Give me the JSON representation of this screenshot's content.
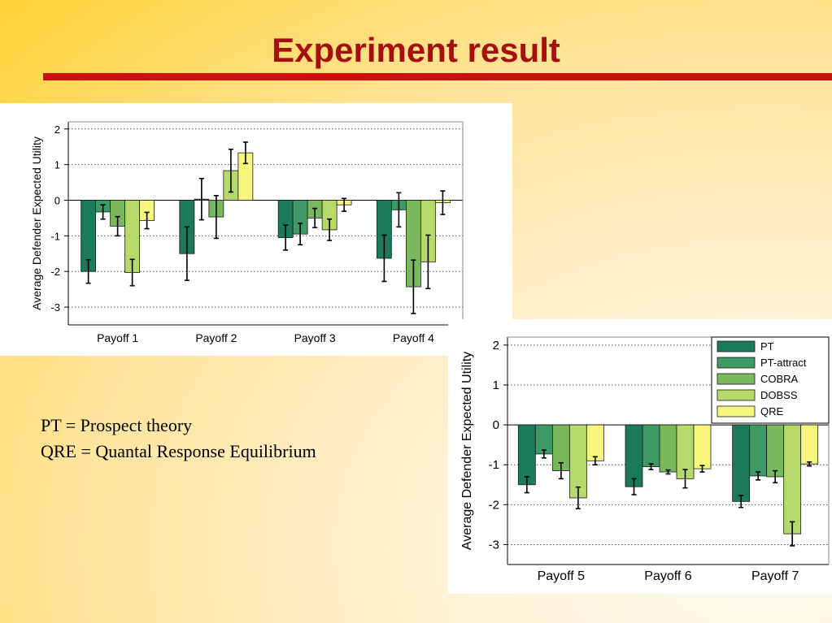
{
  "slide": {
    "title": "Experiment result",
    "notes": [
      "PT = Prospect theory",
      "QRE = Quantal Response Equilibrium"
    ]
  },
  "colors": {
    "title": "#a50f0f",
    "rule": "#cc1010",
    "series": [
      "#1a7a5a",
      "#3e9a64",
      "#79b85c",
      "#b6da69",
      "#f6f77c"
    ]
  },
  "chart_data": [
    {
      "type": "bar",
      "ylabel": "Average Defender Expected Utility",
      "ylim": [
        -3.5,
        2.2
      ],
      "yticks": [
        2,
        1,
        0,
        -1,
        -2,
        -3
      ],
      "grid": "dotted horizontal",
      "legend": null,
      "categories": [
        "Payoff 1",
        "Payoff 2",
        "Payoff 3",
        "Payoff 4"
      ],
      "series": [
        {
          "name": "PT",
          "values": [
            -2.0,
            -1.5,
            -1.05,
            -1.63
          ],
          "err": [
            0.33,
            0.75,
            0.35,
            0.65
          ]
        },
        {
          "name": "PT-attract",
          "values": [
            -0.33,
            0.03,
            -0.95,
            -0.27
          ],
          "err": [
            0.2,
            0.58,
            0.3,
            0.48
          ]
        },
        {
          "name": "COBRA",
          "values": [
            -0.73,
            -0.47,
            -0.5,
            -2.43
          ],
          "err": [
            0.27,
            0.6,
            0.27,
            0.75
          ]
        },
        {
          "name": "DOBSS",
          "values": [
            -2.03,
            0.83,
            -0.83,
            -1.73
          ],
          "err": [
            0.37,
            0.6,
            0.3,
            0.75
          ]
        },
        {
          "name": "QRE",
          "values": [
            -0.57,
            1.33,
            -0.13,
            -0.07
          ],
          "err": [
            0.23,
            0.3,
            0.18,
            0.33
          ]
        }
      ]
    },
    {
      "type": "bar",
      "ylabel": "Average Defender Expected Utility",
      "ylim": [
        -3.5,
        2.2
      ],
      "yticks": [
        2,
        1,
        0,
        -1,
        -2,
        -3
      ],
      "grid": "dotted horizontal",
      "legend": "top-right",
      "categories": [
        "Payoff 5",
        "Payoff 6",
        "Payoff 7"
      ],
      "series": [
        {
          "name": "PT",
          "values": [
            -1.5,
            -1.55,
            -1.92
          ],
          "err": [
            0.2,
            0.2,
            0.15
          ]
        },
        {
          "name": "PT-attract",
          "values": [
            -0.73,
            -1.05,
            -1.28
          ],
          "err": [
            0.1,
            0.07,
            0.1
          ]
        },
        {
          "name": "COBRA",
          "values": [
            -1.15,
            -1.18,
            -1.3
          ],
          "err": [
            0.2,
            0.05,
            0.15
          ]
        },
        {
          "name": "DOBSS",
          "values": [
            -1.83,
            -1.35,
            -2.73
          ],
          "err": [
            0.27,
            0.23,
            0.3
          ]
        },
        {
          "name": "QRE",
          "values": [
            -0.9,
            -1.1,
            -0.98
          ],
          "err": [
            0.1,
            0.08,
            0.05
          ]
        }
      ]
    }
  ]
}
